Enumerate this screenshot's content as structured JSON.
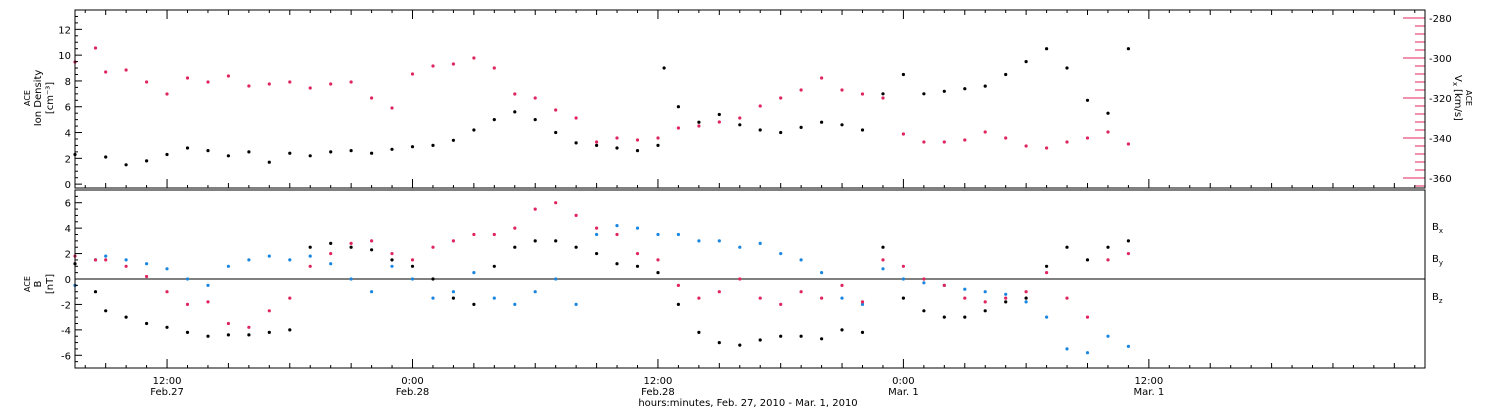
{
  "colors": {
    "density": "#000000",
    "vx": "#e0245e",
    "bx": "#000000",
    "by": "#1a86e0",
    "bz": "#e0245e"
  },
  "x_axis": {
    "title": "hours:minutes, Feb. 27, 2010 - Mar. 1, 2010",
    "range_hours": [
      7.5,
      73.5
    ],
    "ticks": [
      {
        "h": 12,
        "time": "12:00",
        "date": "Feb.27"
      },
      {
        "h": 24,
        "time": "0:00",
        "date": "Feb.28"
      },
      {
        "h": 36,
        "time": "12:00",
        "date": "Feb.28"
      },
      {
        "h": 48,
        "time": "0:00",
        "date": "Mar. 1"
      },
      {
        "h": 60,
        "time": "12:00",
        "date": "Mar. 1"
      }
    ]
  },
  "chart_data": [
    {
      "type": "scatter",
      "panel": "top",
      "ylabel": {
        "line1": "ACE",
        "line2": "Ion Density",
        "line3": "[cm⁻³]"
      },
      "y2label": {
        "main": "V",
        "sub": "x",
        "sup": "ACE",
        "unit": "[km/s]"
      },
      "ylim": [
        -0.3,
        13.5
      ],
      "yticks": [
        0,
        2,
        4,
        6,
        8,
        10,
        12
      ],
      "y2lim": [
        -365,
        -276
      ],
      "y2ticks": [
        -360,
        -340,
        -320,
        -300,
        -280
      ],
      "series": [
        {
          "key": "density",
          "axis": "left",
          "points": [
            [
              7.5,
              2.3
            ],
            [
              9,
              2.1
            ],
            [
              10,
              1.5
            ],
            [
              11,
              1.8
            ],
            [
              12,
              2.3
            ],
            [
              13,
              2.8
            ],
            [
              14,
              2.6
            ],
            [
              15,
              2.2
            ],
            [
              16,
              2.5
            ],
            [
              17,
              1.7
            ],
            [
              18,
              2.4
            ],
            [
              19,
              2.2
            ],
            [
              20,
              2.5
            ],
            [
              21,
              2.6
            ],
            [
              22,
              2.4
            ],
            [
              23,
              2.7
            ],
            [
              24,
              2.9
            ],
            [
              25,
              3.0
            ],
            [
              26,
              3.4
            ],
            [
              27,
              4.2
            ],
            [
              28,
              5.0
            ],
            [
              29,
              5.6
            ],
            [
              30,
              5.0
            ],
            [
              31,
              4.0
            ],
            [
              32,
              3.2
            ],
            [
              33,
              3.0
            ],
            [
              34,
              2.8
            ],
            [
              35,
              2.6
            ],
            [
              36,
              3.0
            ],
            [
              36.3,
              9.0
            ],
            [
              37,
              6.0
            ],
            [
              38,
              4.8
            ],
            [
              39,
              5.4
            ],
            [
              40,
              4.6
            ],
            [
              41,
              4.2
            ],
            [
              42,
              4.0
            ],
            [
              43,
              4.4
            ],
            [
              44,
              4.8
            ],
            [
              45,
              4.6
            ],
            [
              46,
              4.2
            ],
            [
              47,
              7.0
            ],
            [
              48,
              8.5
            ],
            [
              49,
              7.0
            ],
            [
              50,
              7.2
            ],
            [
              51,
              7.4
            ],
            [
              52,
              7.6
            ],
            [
              53,
              8.5
            ],
            [
              54,
              9.5
            ],
            [
              55,
              10.5
            ],
            [
              56,
              9.0
            ],
            [
              57,
              6.5
            ],
            [
              58,
              5.5
            ],
            [
              59,
              10.5
            ]
          ]
        },
        {
          "key": "vx",
          "axis": "right",
          "points": [
            [
              7.5,
              -302
            ],
            [
              8.5,
              -295
            ],
            [
              9,
              -307
            ],
            [
              10,
              -306
            ],
            [
              11,
              -312
            ],
            [
              12,
              -318
            ],
            [
              13,
              -310
            ],
            [
              14,
              -312
            ],
            [
              15,
              -309
            ],
            [
              16,
              -314
            ],
            [
              17,
              -313
            ],
            [
              18,
              -312
            ],
            [
              19,
              -315
            ],
            [
              20,
              -313
            ],
            [
              21,
              -312
            ],
            [
              22,
              -320
            ],
            [
              23,
              -325
            ],
            [
              24,
              -308
            ],
            [
              25,
              -304
            ],
            [
              26,
              -303
            ],
            [
              27,
              -300
            ],
            [
              28,
              -305
            ],
            [
              29,
              -318
            ],
            [
              30,
              -320
            ],
            [
              31,
              -326
            ],
            [
              32,
              -330
            ],
            [
              33,
              -342
            ],
            [
              34,
              -340
            ],
            [
              35,
              -341
            ],
            [
              36,
              -340
            ],
            [
              37,
              -335
            ],
            [
              38,
              -334
            ],
            [
              39,
              -332
            ],
            [
              40,
              -330
            ],
            [
              41,
              -324
            ],
            [
              42,
              -320
            ],
            [
              43,
              -316
            ],
            [
              44,
              -310
            ],
            [
              45,
              -316
            ],
            [
              46,
              -318
            ],
            [
              47,
              -320
            ],
            [
              48,
              -338
            ],
            [
              49,
              -342
            ],
            [
              50,
              -342
            ],
            [
              51,
              -341
            ],
            [
              52,
              -337
            ],
            [
              53,
              -340
            ],
            [
              54,
              -344
            ],
            [
              55,
              -345
            ],
            [
              56,
              -342
            ],
            [
              57,
              -340
            ],
            [
              58,
              -337
            ],
            [
              59,
              -343
            ]
          ]
        }
      ]
    },
    {
      "type": "scatter",
      "panel": "bottom",
      "ylabel": {
        "line1": "ACE",
        "line2": "B",
        "line3": "[nT]"
      },
      "ylim": [
        -7,
        7
      ],
      "yticks": [
        -6,
        -4,
        -2,
        0,
        2,
        4,
        6
      ],
      "zero_line": true,
      "legend": [
        {
          "main": "B",
          "sub": "x"
        },
        {
          "main": "B",
          "sub": "y"
        },
        {
          "main": "B",
          "sub": "z"
        }
      ],
      "series": [
        {
          "key": "bx",
          "points": [
            [
              7.5,
              1.2
            ],
            [
              8.5,
              -1.0
            ],
            [
              9,
              -2.5
            ],
            [
              10,
              -3.0
            ],
            [
              11,
              -3.5
            ],
            [
              12,
              -3.8
            ],
            [
              13,
              -4.2
            ],
            [
              14,
              -4.5
            ],
            [
              15,
              -4.4
            ],
            [
              16,
              -4.4
            ],
            [
              17,
              -4.2
            ],
            [
              18,
              -4.0
            ],
            [
              19,
              2.5
            ],
            [
              20,
              2.8
            ],
            [
              21,
              2.5
            ],
            [
              22,
              2.3
            ],
            [
              23,
              1.5
            ],
            [
              24,
              1.0
            ],
            [
              25,
              0.0
            ],
            [
              26,
              -1.5
            ],
            [
              27,
              -2.0
            ],
            [
              28,
              1.0
            ],
            [
              29,
              2.5
            ],
            [
              30,
              3.0
            ],
            [
              31,
              3.0
            ],
            [
              32,
              2.5
            ],
            [
              33,
              2.0
            ],
            [
              34,
              1.2
            ],
            [
              35,
              1.0
            ],
            [
              36,
              0.5
            ],
            [
              37,
              -2.0
            ],
            [
              38,
              -4.2
            ],
            [
              39,
              -5.0
            ],
            [
              40,
              -5.2
            ],
            [
              41,
              -4.8
            ],
            [
              42,
              -4.5
            ],
            [
              43,
              -4.5
            ],
            [
              44,
              -4.7
            ],
            [
              45,
              -4.0
            ],
            [
              46,
              -4.2
            ],
            [
              47,
              2.5
            ],
            [
              48,
              -1.5
            ],
            [
              49,
              -2.5
            ],
            [
              50,
              -3.0
            ],
            [
              51,
              -3.0
            ],
            [
              52,
              -2.5
            ],
            [
              53,
              -1.8
            ],
            [
              54,
              -1.5
            ],
            [
              55,
              1.0
            ],
            [
              56,
              2.5
            ],
            [
              57,
              1.5
            ],
            [
              58,
              2.5
            ],
            [
              59,
              3.0
            ]
          ]
        },
        {
          "key": "by",
          "points": [
            [
              7.5,
              -0.5
            ],
            [
              8.5,
              1.5
            ],
            [
              9,
              1.8
            ],
            [
              10,
              1.5
            ],
            [
              11,
              1.2
            ],
            [
              12,
              0.8
            ],
            [
              13,
              0.0
            ],
            [
              14,
              -0.5
            ],
            [
              15,
              1.0
            ],
            [
              16,
              1.5
            ],
            [
              17,
              1.8
            ],
            [
              18,
              1.5
            ],
            [
              19,
              1.8
            ],
            [
              20,
              1.2
            ],
            [
              21,
              0.0
            ],
            [
              22,
              -1.0
            ],
            [
              23,
              1.0
            ],
            [
              24,
              0.0
            ],
            [
              25,
              -1.5
            ],
            [
              26,
              -1.0
            ],
            [
              27,
              0.5
            ],
            [
              28,
              -1.5
            ],
            [
              29,
              -2.0
            ],
            [
              30,
              -1.0
            ],
            [
              31,
              0.0
            ],
            [
              32,
              -2.0
            ],
            [
              33,
              3.5
            ],
            [
              34,
              4.2
            ],
            [
              35,
              4.0
            ],
            [
              36,
              3.5
            ],
            [
              37,
              3.5
            ],
            [
              38,
              3.0
            ],
            [
              39,
              3.0
            ],
            [
              40,
              2.5
            ],
            [
              41,
              2.8
            ],
            [
              42,
              2.0
            ],
            [
              43,
              1.5
            ],
            [
              44,
              0.5
            ],
            [
              45,
              -1.5
            ],
            [
              46,
              -2.0
            ],
            [
              47,
              0.8
            ],
            [
              48,
              0.0
            ],
            [
              49,
              -0.3
            ],
            [
              50,
              -0.5
            ],
            [
              51,
              -0.8
            ],
            [
              52,
              -1.0
            ],
            [
              53,
              -1.2
            ],
            [
              54,
              -1.8
            ],
            [
              55,
              -3.0
            ],
            [
              56,
              -5.5
            ],
            [
              57,
              -5.8
            ],
            [
              58,
              -4.5
            ],
            [
              59,
              -5.3
            ]
          ]
        },
        {
          "key": "bz",
          "points": [
            [
              7.5,
              1.8
            ],
            [
              8.5,
              1.5
            ],
            [
              9,
              1.5
            ],
            [
              10,
              1.0
            ],
            [
              11,
              0.2
            ],
            [
              12,
              -1.0
            ],
            [
              13,
              -2.0
            ],
            [
              14,
              -1.8
            ],
            [
              15,
              -3.5
            ],
            [
              16,
              -3.8
            ],
            [
              17,
              -2.5
            ],
            [
              18,
              -1.5
            ],
            [
              19,
              1.0
            ],
            [
              20,
              2.0
            ],
            [
              21,
              2.8
            ],
            [
              22,
              3.0
            ],
            [
              23,
              2.0
            ],
            [
              24,
              1.5
            ],
            [
              25,
              2.5
            ],
            [
              26,
              3.0
            ],
            [
              27,
              3.5
            ],
            [
              28,
              3.5
            ],
            [
              29,
              4.0
            ],
            [
              30,
              5.5
            ],
            [
              31,
              6.0
            ],
            [
              32,
              5.0
            ],
            [
              33,
              4.0
            ],
            [
              34,
              3.5
            ],
            [
              35,
              2.0
            ],
            [
              36,
              1.5
            ],
            [
              37,
              -0.5
            ],
            [
              38,
              -1.5
            ],
            [
              39,
              -1.0
            ],
            [
              40,
              0.0
            ],
            [
              41,
              -1.5
            ],
            [
              42,
              -2.0
            ],
            [
              43,
              -1.0
            ],
            [
              44,
              -1.5
            ],
            [
              45,
              -0.5
            ],
            [
              46,
              -1.8
            ],
            [
              47,
              1.5
            ],
            [
              48,
              1.0
            ],
            [
              49,
              0.0
            ],
            [
              50,
              -0.5
            ],
            [
              51,
              -1.5
            ],
            [
              52,
              -1.8
            ],
            [
              53,
              -1.5
            ],
            [
              54,
              -1.0
            ],
            [
              55,
              0.5
            ],
            [
              56,
              -1.5
            ],
            [
              57,
              -3.0
            ],
            [
              58,
              1.5
            ],
            [
              59,
              2.0
            ]
          ]
        }
      ]
    }
  ]
}
